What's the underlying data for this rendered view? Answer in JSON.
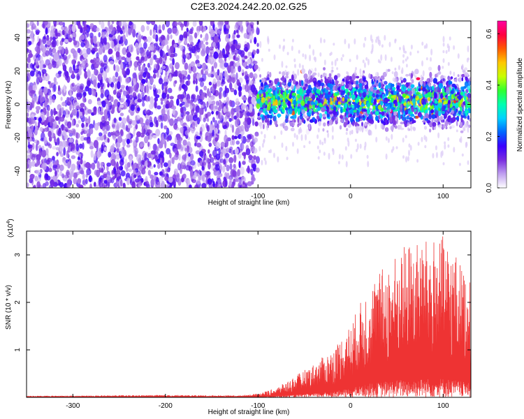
{
  "title": "C2E3.2024.242.20.02.G25",
  "chart_data": [
    {
      "type": "heatmap",
      "xlabel": "Height of straight line (km)",
      "ylabel": "Frequency (Hz)",
      "xlim": [
        -350,
        130
      ],
      "ylim": [
        -50,
        50
      ],
      "xticks": [
        -300,
        -200,
        -100,
        0,
        100
      ],
      "yticks": [
        -40,
        -20,
        0,
        20,
        40
      ],
      "colorbar": {
        "label": "Normalized spectral amplitude",
        "range": [
          0.0,
          0.65
        ],
        "ticks": [
          "0.0",
          "0.2",
          "0.4",
          "0.6"
        ],
        "colormap": [
          "#ffffff",
          "#c0a0f0",
          "#7a2ee0",
          "#3a00ff",
          "#0066ff",
          "#00d2ff",
          "#00ffb0",
          "#30ff30",
          "#c8ff00",
          "#ffc800",
          "#ff5a00",
          "#ff0040",
          "#ff00a0"
        ]
      },
      "regions": [
        {
          "x": [
            -350,
            -100
          ],
          "freq_range": [
            -50,
            50
          ],
          "amplitude": "0.05-0.15",
          "pattern": "noise"
        },
        {
          "x": [
            -100,
            130
          ],
          "freq_center": 2,
          "freq_half_width": 12,
          "amplitude": "0.2-0.6",
          "pattern": "signal band"
        }
      ]
    },
    {
      "type": "line",
      "xlabel": "Height of straight line (km)",
      "ylabel": "SNR (10 * v/v)",
      "multiplier": "(x10",
      "multiplier_exp": "4",
      "xlim": [
        -350,
        130
      ],
      "ylim": [
        0,
        3.5
      ],
      "xticks": [
        -300,
        -200,
        -100,
        0,
        100
      ],
      "yticks": [
        1,
        2,
        3
      ],
      "color": "#ee3333",
      "envelope": [
        {
          "x": -350,
          "y": 0.03
        },
        {
          "x": -200,
          "y": 0.05
        },
        {
          "x": -120,
          "y": 0.04
        },
        {
          "x": -100,
          "y": 0.08
        },
        {
          "x": -80,
          "y": 0.2
        },
        {
          "x": -60,
          "y": 0.45
        },
        {
          "x": -40,
          "y": 0.7
        },
        {
          "x": -20,
          "y": 1.0
        },
        {
          "x": 0,
          "y": 1.55
        },
        {
          "x": 20,
          "y": 2.4
        },
        {
          "x": 40,
          "y": 2.85
        },
        {
          "x": 60,
          "y": 3.25
        },
        {
          "x": 80,
          "y": 3.3
        },
        {
          "x": 100,
          "y": 3.4
        },
        {
          "x": 115,
          "y": 3.0
        },
        {
          "x": 130,
          "y": 2.4
        }
      ]
    }
  ]
}
